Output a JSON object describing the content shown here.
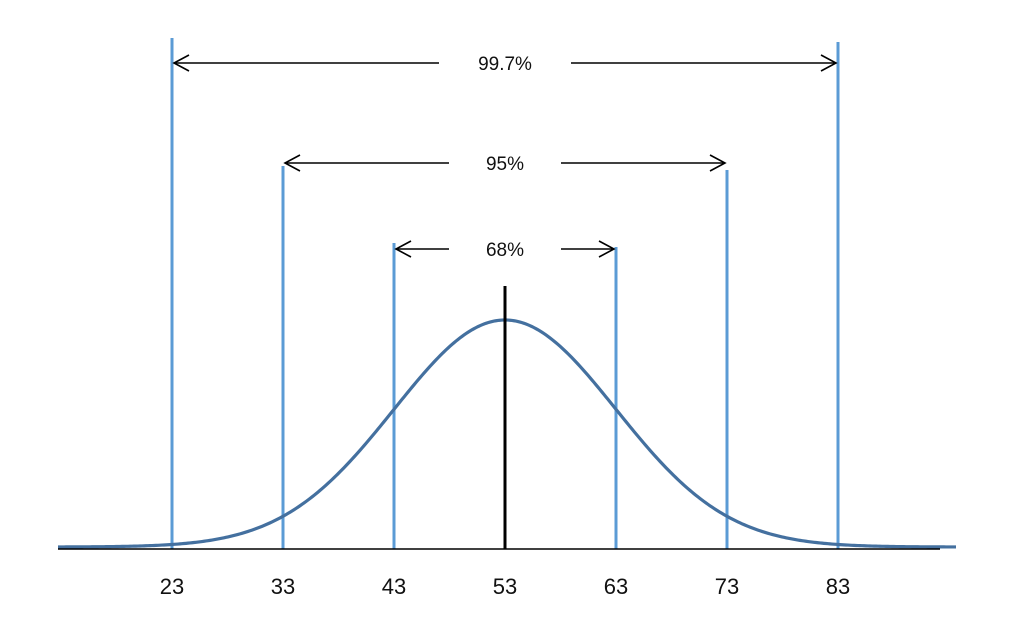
{
  "diagram": {
    "type": "normal-distribution-empirical-rule",
    "mean": 53,
    "sd": 10,
    "tick_labels": [
      "23",
      "33",
      "43",
      "53",
      "63",
      "73",
      "83"
    ],
    "intervals": [
      {
        "label": "68%",
        "from": 43,
        "to": 63
      },
      {
        "label": "95%",
        "from": 33,
        "to": 73
      },
      {
        "label": "99.7%",
        "from": 23,
        "to": 83
      }
    ],
    "colors": {
      "curve": "#44709f",
      "guide_lines": "#5b9bd5",
      "mean_line": "#000000",
      "axis": "#000000",
      "arrows": "#000000"
    }
  }
}
